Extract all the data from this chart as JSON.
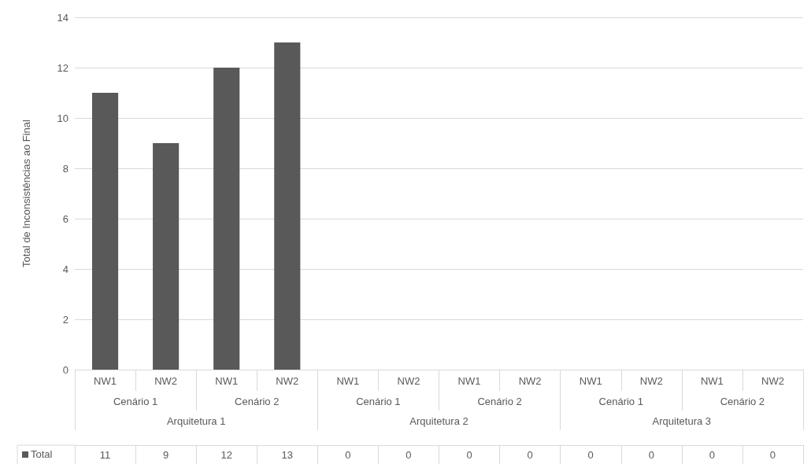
{
  "chart_data": {
    "type": "bar",
    "ylabel": "Total de Inconsistências ao Final",
    "categories": [
      "NW1",
      "NW2",
      "NW1",
      "NW2",
      "NW1",
      "NW2",
      "NW1",
      "NW2",
      "NW1",
      "NW2",
      "NW1",
      "NW2"
    ],
    "series": [
      {
        "name": "Total",
        "color": "#595959",
        "values": [
          11,
          9,
          12,
          13,
          0,
          0,
          0,
          0,
          0,
          0,
          0,
          0
        ]
      }
    ],
    "ylim": [
      0,
      14
    ],
    "yticks": [
      0,
      2,
      4,
      6,
      8,
      10,
      12,
      14
    ],
    "grid": "y",
    "data_labels": true,
    "annotations": [
      "Cenário 1",
      "Cenário 2",
      "Cenário 1",
      "Cenário 2",
      "Cenário 1",
      "Cenário 2",
      "Arquitetura 1",
      "Arquitetura 2",
      "Arquitetura 3"
    ]
  }
}
